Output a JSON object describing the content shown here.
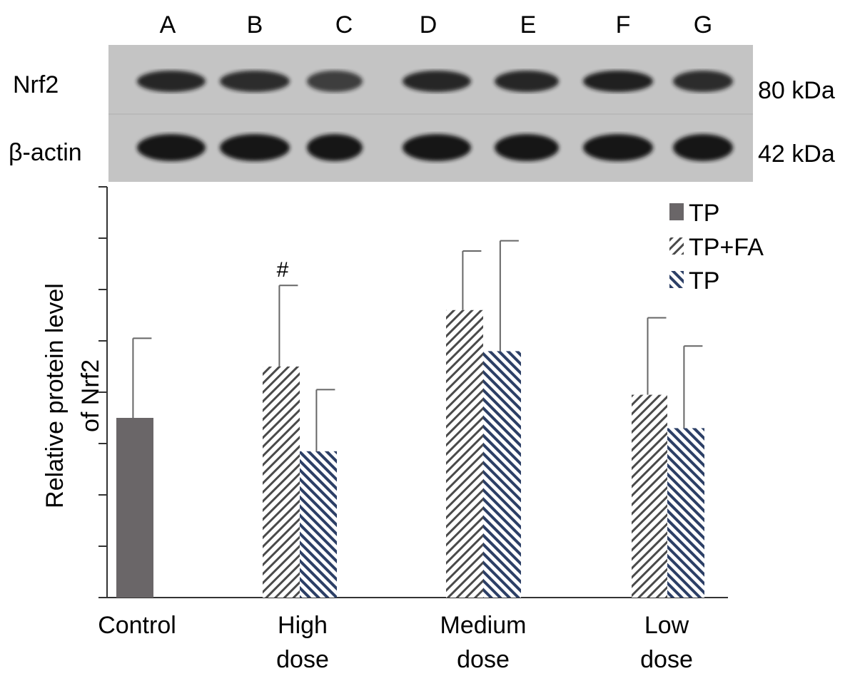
{
  "blot": {
    "lanes": [
      "A",
      "B",
      "C",
      "D",
      "E",
      "F",
      "G"
    ],
    "rows": [
      {
        "protein": "Nrf2",
        "size": "80 kDa",
        "intensity": [
          0.85,
          0.8,
          0.65,
          0.85,
          0.85,
          0.9,
          0.8
        ]
      },
      {
        "protein": "β-actin",
        "size": "42 kDa",
        "intensity": [
          1,
          1,
          1,
          1,
          1,
          1,
          1
        ]
      }
    ],
    "colors": {
      "background": "#c4c4c4",
      "band": "#151515"
    }
  },
  "chart_data": {
    "type": "bar",
    "categories": [
      "Control",
      "High\ndose",
      "Medium\ndose",
      "Low\ndose"
    ],
    "ylabel": [
      "Relative protein level",
      "of Nrf2"
    ],
    "ylim": [
      0,
      8
    ],
    "yticks": [
      0,
      1,
      2,
      3,
      4,
      5,
      6,
      7,
      8
    ],
    "show_tick_labels": false,
    "grid": false,
    "legend": "top-right",
    "legend_entries": [
      "TP",
      "TP+FA",
      "TP"
    ],
    "series": [
      {
        "key": "control",
        "values": [
          3.5,
          null,
          null,
          null
        ],
        "errors": [
          1.55,
          null,
          null,
          null
        ],
        "color": "#6a6668",
        "pattern": "solid"
      },
      {
        "key": "tp_fa",
        "values": [
          null,
          4.5,
          5.6,
          3.95
        ],
        "errors": [
          null,
          1.58,
          1.15,
          1.5
        ],
        "color": "#4a4a4a",
        "pattern": "hatch-up"
      },
      {
        "key": "tp",
        "values": [
          null,
          2.85,
          4.8,
          3.3
        ],
        "errors": [
          null,
          1.2,
          2.15,
          1.6
        ],
        "color": "#2c3f66",
        "pattern": "hatch-down"
      }
    ],
    "annotations": [
      {
        "text": "#",
        "category": 1,
        "series": "tp_fa"
      }
    ]
  }
}
